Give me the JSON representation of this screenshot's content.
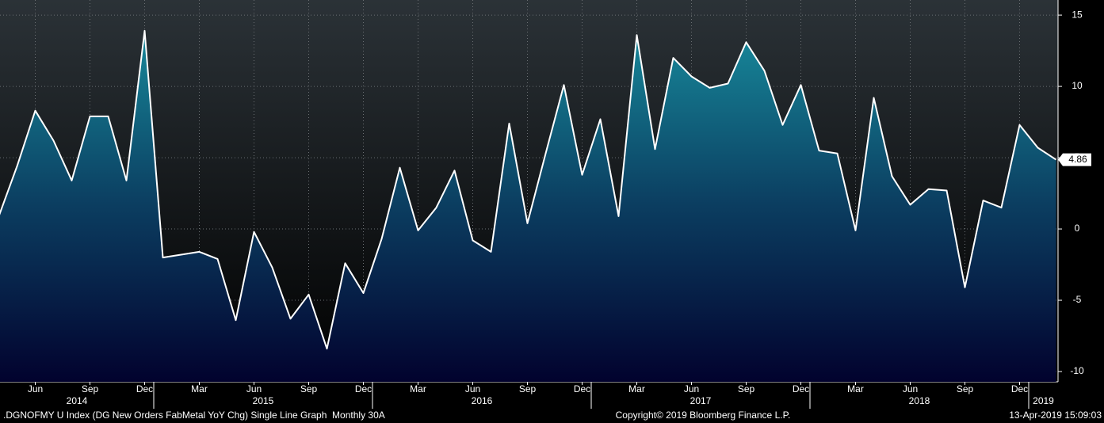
{
  "chart_data": {
    "type": "area",
    "title": ".DGNOFMY U Index (DG New Orders FabMetal YoY Chg) Single Line Graph  Monthly 30A",
    "copyright": "Copyright© 2019 Bloomberg Finance L.P.",
    "timestamp": "13-Apr-2019 15:09:03",
    "categories": [
      null,
      null,
      "Jun",
      null,
      null,
      "Sep",
      null,
      null,
      "Dec",
      null,
      null,
      "Mar",
      null,
      null,
      "Jun",
      null,
      null,
      "Sep",
      null,
      null,
      "Dec",
      null,
      null,
      "Mar",
      null,
      null,
      "Jun",
      null,
      null,
      "Sep",
      null,
      null,
      "Dec",
      null,
      null,
      "Mar",
      null,
      null,
      "Jun",
      null,
      null,
      "Sep",
      null,
      null,
      "Dec",
      null,
      null,
      "Mar",
      null,
      null,
      "Jun",
      null,
      null,
      "Sep",
      null,
      null,
      "Dec",
      null,
      null
    ],
    "years": [
      "2014",
      null,
      null,
      null,
      null,
      null,
      null,
      null,
      null,
      "2015",
      null,
      null,
      null,
      null,
      null,
      null,
      null,
      null,
      null,
      null,
      null,
      "2016",
      null,
      null,
      null,
      null,
      null,
      null,
      null,
      null,
      null,
      null,
      null,
      "2017",
      null,
      null,
      null,
      null,
      null,
      null,
      null,
      null,
      null,
      null,
      null,
      "2018",
      null,
      null,
      null,
      null,
      null,
      null,
      null,
      null,
      null,
      null,
      null,
      "2019",
      null
    ],
    "series": [
      {
        "name": "DG New Orders FabMetal YoY Chg",
        "color": "#ffffff",
        "values": [
          0.9,
          4.4,
          8.3,
          6.2,
          3.4,
          7.9,
          7.9,
          3.4,
          13.9,
          -2.0,
          -1.8,
          -1.6,
          -2.1,
          -6.4,
          -0.2,
          -2.7,
          -6.3,
          -4.6,
          -8.4,
          -2.4,
          -4.5,
          -0.7,
          4.3,
          -0.1,
          1.5,
          4.1,
          -0.8,
          -1.6,
          7.4,
          0.4,
          5.3,
          10.1,
          3.8,
          7.7,
          0.9,
          13.6,
          5.6,
          12.0,
          10.7,
          9.9,
          10.2,
          13.1,
          11.1,
          7.3,
          10.1,
          5.5,
          5.3,
          -0.1,
          9.2,
          3.7,
          1.7,
          2.8,
          2.7,
          -4.1,
          2.0,
          1.5,
          7.3,
          5.7,
          4.86
        ]
      }
    ],
    "ylim": [
      -10.72,
      16.06
    ],
    "yticks": [
      -10,
      -5,
      0,
      5,
      10,
      15
    ],
    "grid": true
  }
}
